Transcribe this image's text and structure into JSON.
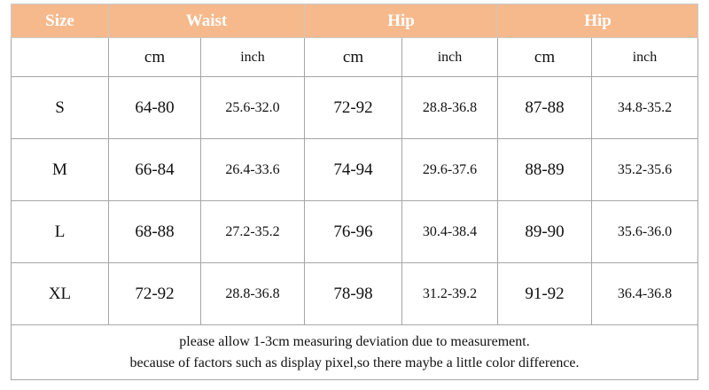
{
  "header": [
    "Size",
    "Waist",
    "Hip",
    "Hip"
  ],
  "subheader": [
    "cm",
    "inch",
    "cm",
    "inch",
    "cm",
    "inch"
  ],
  "rows": [
    [
      "S",
      "64-80",
      "25.6-32.0",
      "72-92",
      "28.8-36.8",
      "87-88",
      "34.8-35.2"
    ],
    [
      "M",
      "66-84",
      "26.4-33.6",
      "74-94",
      "29.6-37.6",
      "88-89",
      "35.2-35.6"
    ],
    [
      "L",
      "68-88",
      "27.2-35.2",
      "76-96",
      "30.4-38.4",
      "89-90",
      "35.6-36.0"
    ],
    [
      "XL",
      "72-92",
      "28.8-36.8",
      "78-98",
      "31.2-39.2",
      "91-92",
      "36.4-36.8"
    ]
  ],
  "notes": [
    "please allow 1-3cm measuring deviation due to measurement.",
    "because of factors such as display pixel,so there maybe a little color difference."
  ]
}
